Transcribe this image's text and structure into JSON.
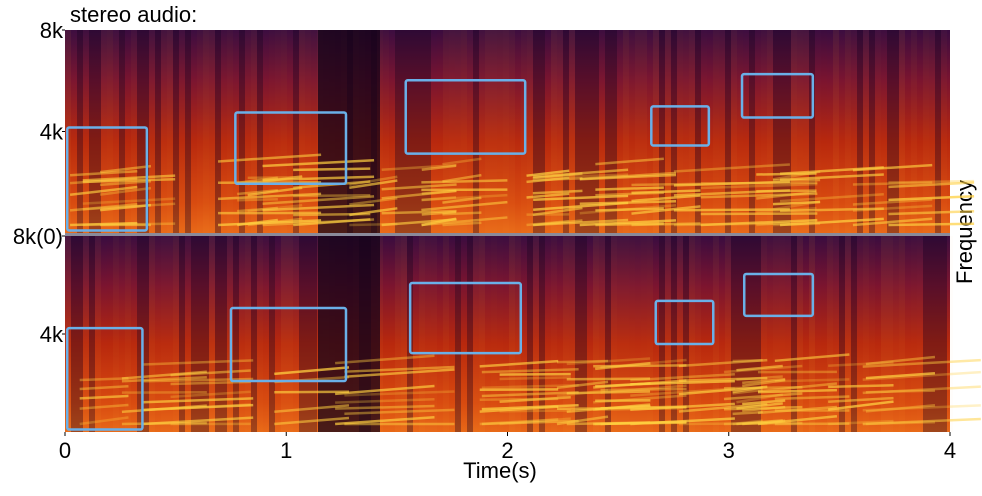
{
  "chart_data": {
    "type": "spectrogram",
    "title": "stereo audio:",
    "x_label": "Time(s)",
    "y_label": "Frequency",
    "xlim": [
      0,
      4
    ],
    "xticks": [
      0,
      1,
      2,
      3,
      4
    ],
    "box_color": "#6ab0e8",
    "panels": [
      {
        "ylim": [
          0,
          8000
        ],
        "yticks": [
          {
            "value": 4000,
            "label": "4k"
          },
          {
            "value": 8000,
            "label": "8k"
          }
        ],
        "boxes": [
          {
            "x": [
              0.01,
              0.37
            ],
            "y": [
              100,
              4160
            ]
          },
          {
            "x": [
              0.77,
              1.27
            ],
            "y": [
              1940,
              4750
            ]
          },
          {
            "x": [
              1.54,
              2.08
            ],
            "y": [
              3130,
              6020
            ]
          },
          {
            "x": [
              2.65,
              2.91
            ],
            "y": [
              3450,
              4990
            ]
          },
          {
            "x": [
              3.06,
              3.38
            ],
            "y": [
              4550,
              6260
            ]
          }
        ]
      },
      {
        "ylim": [
          0,
          8000
        ],
        "yticks": [
          {
            "value": 4000,
            "label": "4k"
          },
          {
            "value": 8000,
            "label": "8k(0)"
          }
        ],
        "boxes": [
          {
            "x": [
              0.01,
              0.35
            ],
            "y": [
              100,
              4240
            ]
          },
          {
            "x": [
              0.75,
              1.27
            ],
            "y": [
              2080,
              5060
            ]
          },
          {
            "x": [
              1.56,
              2.06
            ],
            "y": [
              3220,
              6080
            ]
          },
          {
            "x": [
              2.67,
              2.93
            ],
            "y": [
              3590,
              5350
            ]
          },
          {
            "x": [
              3.07,
              3.38
            ],
            "y": [
              4740,
              6450
            ]
          }
        ]
      }
    ]
  }
}
